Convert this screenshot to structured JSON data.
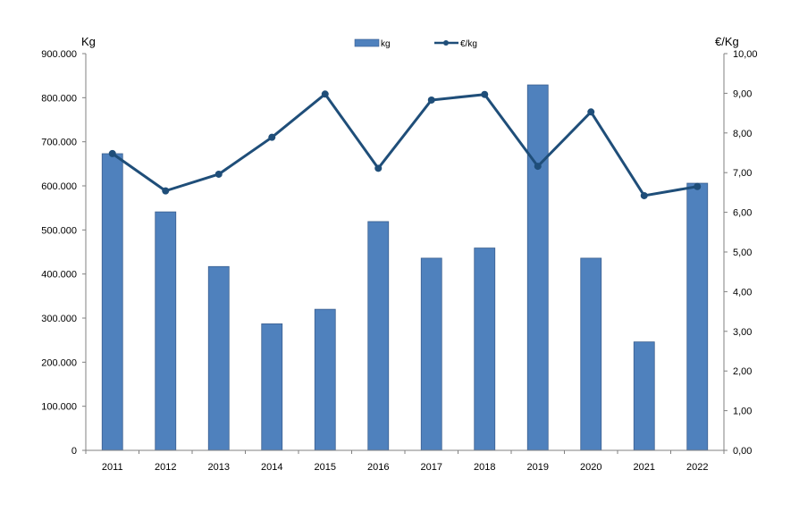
{
  "chart_data": {
    "type": "bar",
    "categories": [
      "2011",
      "2012",
      "2013",
      "2014",
      "2015",
      "2016",
      "2017",
      "2018",
      "2019",
      "2020",
      "2021",
      "2022"
    ],
    "series": [
      {
        "name": "kg",
        "type": "bar",
        "axis": "left",
        "values": [
          673000,
          541000,
          417000,
          287000,
          320000,
          519000,
          436000,
          459000,
          829000,
          436000,
          246000,
          606000
        ]
      },
      {
        "name": "€/kg",
        "type": "line",
        "axis": "right",
        "values": [
          7.48,
          6.54,
          6.96,
          7.89,
          8.98,
          7.11,
          8.83,
          8.97,
          7.16,
          8.53,
          6.42,
          6.65
        ]
      }
    ],
    "ylabel_left": "Kg",
    "ylabel_right": "€/Kg",
    "ylim_left": [
      0,
      900000
    ],
    "ylim_right": [
      0,
      10
    ],
    "yticks_left": [
      "0",
      "100.000",
      "200.000",
      "300.000",
      "400.000",
      "500.000",
      "600.000",
      "700.000",
      "800.000",
      "900.000"
    ],
    "yticks_right": [
      "0,00",
      "1,00",
      "2,00",
      "3,00",
      "4,00",
      "5,00",
      "6,00",
      "7,00",
      "8,00",
      "9,00",
      "10,00"
    ],
    "legend_position": "top-center",
    "grid": false,
    "colors": {
      "bar": "#4f81bd",
      "bar_edge": "#3a5f8f",
      "line": "#1f4e79",
      "axis": "#808080"
    }
  }
}
